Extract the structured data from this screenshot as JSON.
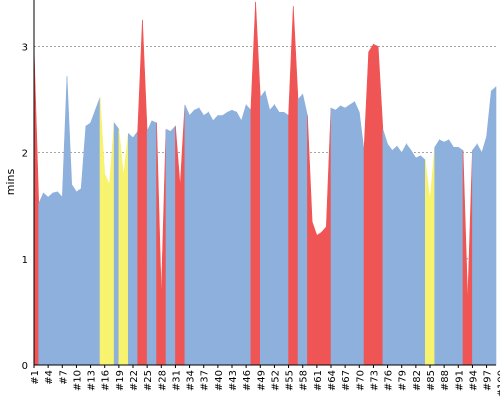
{
  "chart_data": {
    "type": "area",
    "title": "",
    "ylabel": "mins",
    "xlabel": "",
    "ylim": [
      0,
      3.4
    ],
    "y_ticks": [
      0,
      1,
      2,
      3
    ],
    "grid": "horizontal-dashed",
    "x_ticks": [
      "#1",
      "#4",
      "#7",
      "#10",
      "#13",
      "#16",
      "#19",
      "#22",
      "#25",
      "#28",
      "#31",
      "#34",
      "#37",
      "#40",
      "#43",
      "#46",
      "#49",
      "#52",
      "#55",
      "#58",
      "#61",
      "#64",
      "#67",
      "#70",
      "#73",
      "#76",
      "#79",
      "#82",
      "#85",
      "#88",
      "#91",
      "#94",
      "#97",
      "#100"
    ],
    "colors": {
      "normal": "#8eb0dc",
      "warning": "#f8f36e",
      "error": "#f05555",
      "grid": "#888888",
      "axis": "#000000"
    },
    "values": [
      3.0,
      1.52,
      1.62,
      1.58,
      1.62,
      1.63,
      1.58,
      2.72,
      1.7,
      1.63,
      1.66,
      2.25,
      2.28,
      2.4,
      2.52,
      1.8,
      1.7,
      2.28,
      2.22,
      1.78,
      2.18,
      2.14,
      2.2,
      3.25,
      2.2,
      2.3,
      2.28,
      0.65,
      2.22,
      2.2,
      2.25,
      1.68,
      2.45,
      2.35,
      2.4,
      2.42,
      2.35,
      2.38,
      2.3,
      2.35,
      2.35,
      2.38,
      2.4,
      2.38,
      2.3,
      2.45,
      2.4,
      3.42,
      2.52,
      2.58,
      2.4,
      2.45,
      2.38,
      2.38,
      2.35,
      3.38,
      2.5,
      2.55,
      2.35,
      1.35,
      1.22,
      1.25,
      1.3,
      2.42,
      2.4,
      2.44,
      2.42,
      2.45,
      2.48,
      2.38,
      2.02,
      2.95,
      3.02,
      3.0,
      2.22,
      2.08,
      2.02,
      2.06,
      2.0,
      2.08,
      2.02,
      1.95,
      1.97,
      1.93,
      1.55,
      2.05,
      2.12,
      2.1,
      2.12,
      2.05,
      2.05,
      2.02,
      0.6,
      2.02,
      2.08,
      2.0,
      2.15,
      2.58,
      2.62
    ],
    "status": [
      "error",
      "normal",
      "normal",
      "normal",
      "normal",
      "normal",
      "normal",
      "normal",
      "normal",
      "normal",
      "normal",
      "normal",
      "normal",
      "normal",
      "normal",
      "warning",
      "warning",
      "normal",
      "normal",
      "warning",
      "normal",
      "normal",
      "normal",
      "error",
      "normal",
      "normal",
      "normal",
      "error",
      "normal",
      "normal",
      "normal",
      "error",
      "normal",
      "normal",
      "normal",
      "normal",
      "normal",
      "normal",
      "normal",
      "normal",
      "normal",
      "normal",
      "normal",
      "normal",
      "normal",
      "normal",
      "normal",
      "error",
      "normal",
      "normal",
      "normal",
      "normal",
      "normal",
      "normal",
      "normal",
      "error",
      "normal",
      "normal",
      "normal",
      "error",
      "error",
      "error",
      "error",
      "normal",
      "normal",
      "normal",
      "normal",
      "normal",
      "normal",
      "normal",
      "normal",
      "error",
      "error",
      "error",
      "normal",
      "normal",
      "normal",
      "normal",
      "normal",
      "normal",
      "normal",
      "normal",
      "normal",
      "normal",
      "warning",
      "normal",
      "normal",
      "normal",
      "normal",
      "normal",
      "normal",
      "normal",
      "error",
      "normal",
      "normal",
      "normal",
      "normal",
      "normal",
      "normal"
    ]
  }
}
